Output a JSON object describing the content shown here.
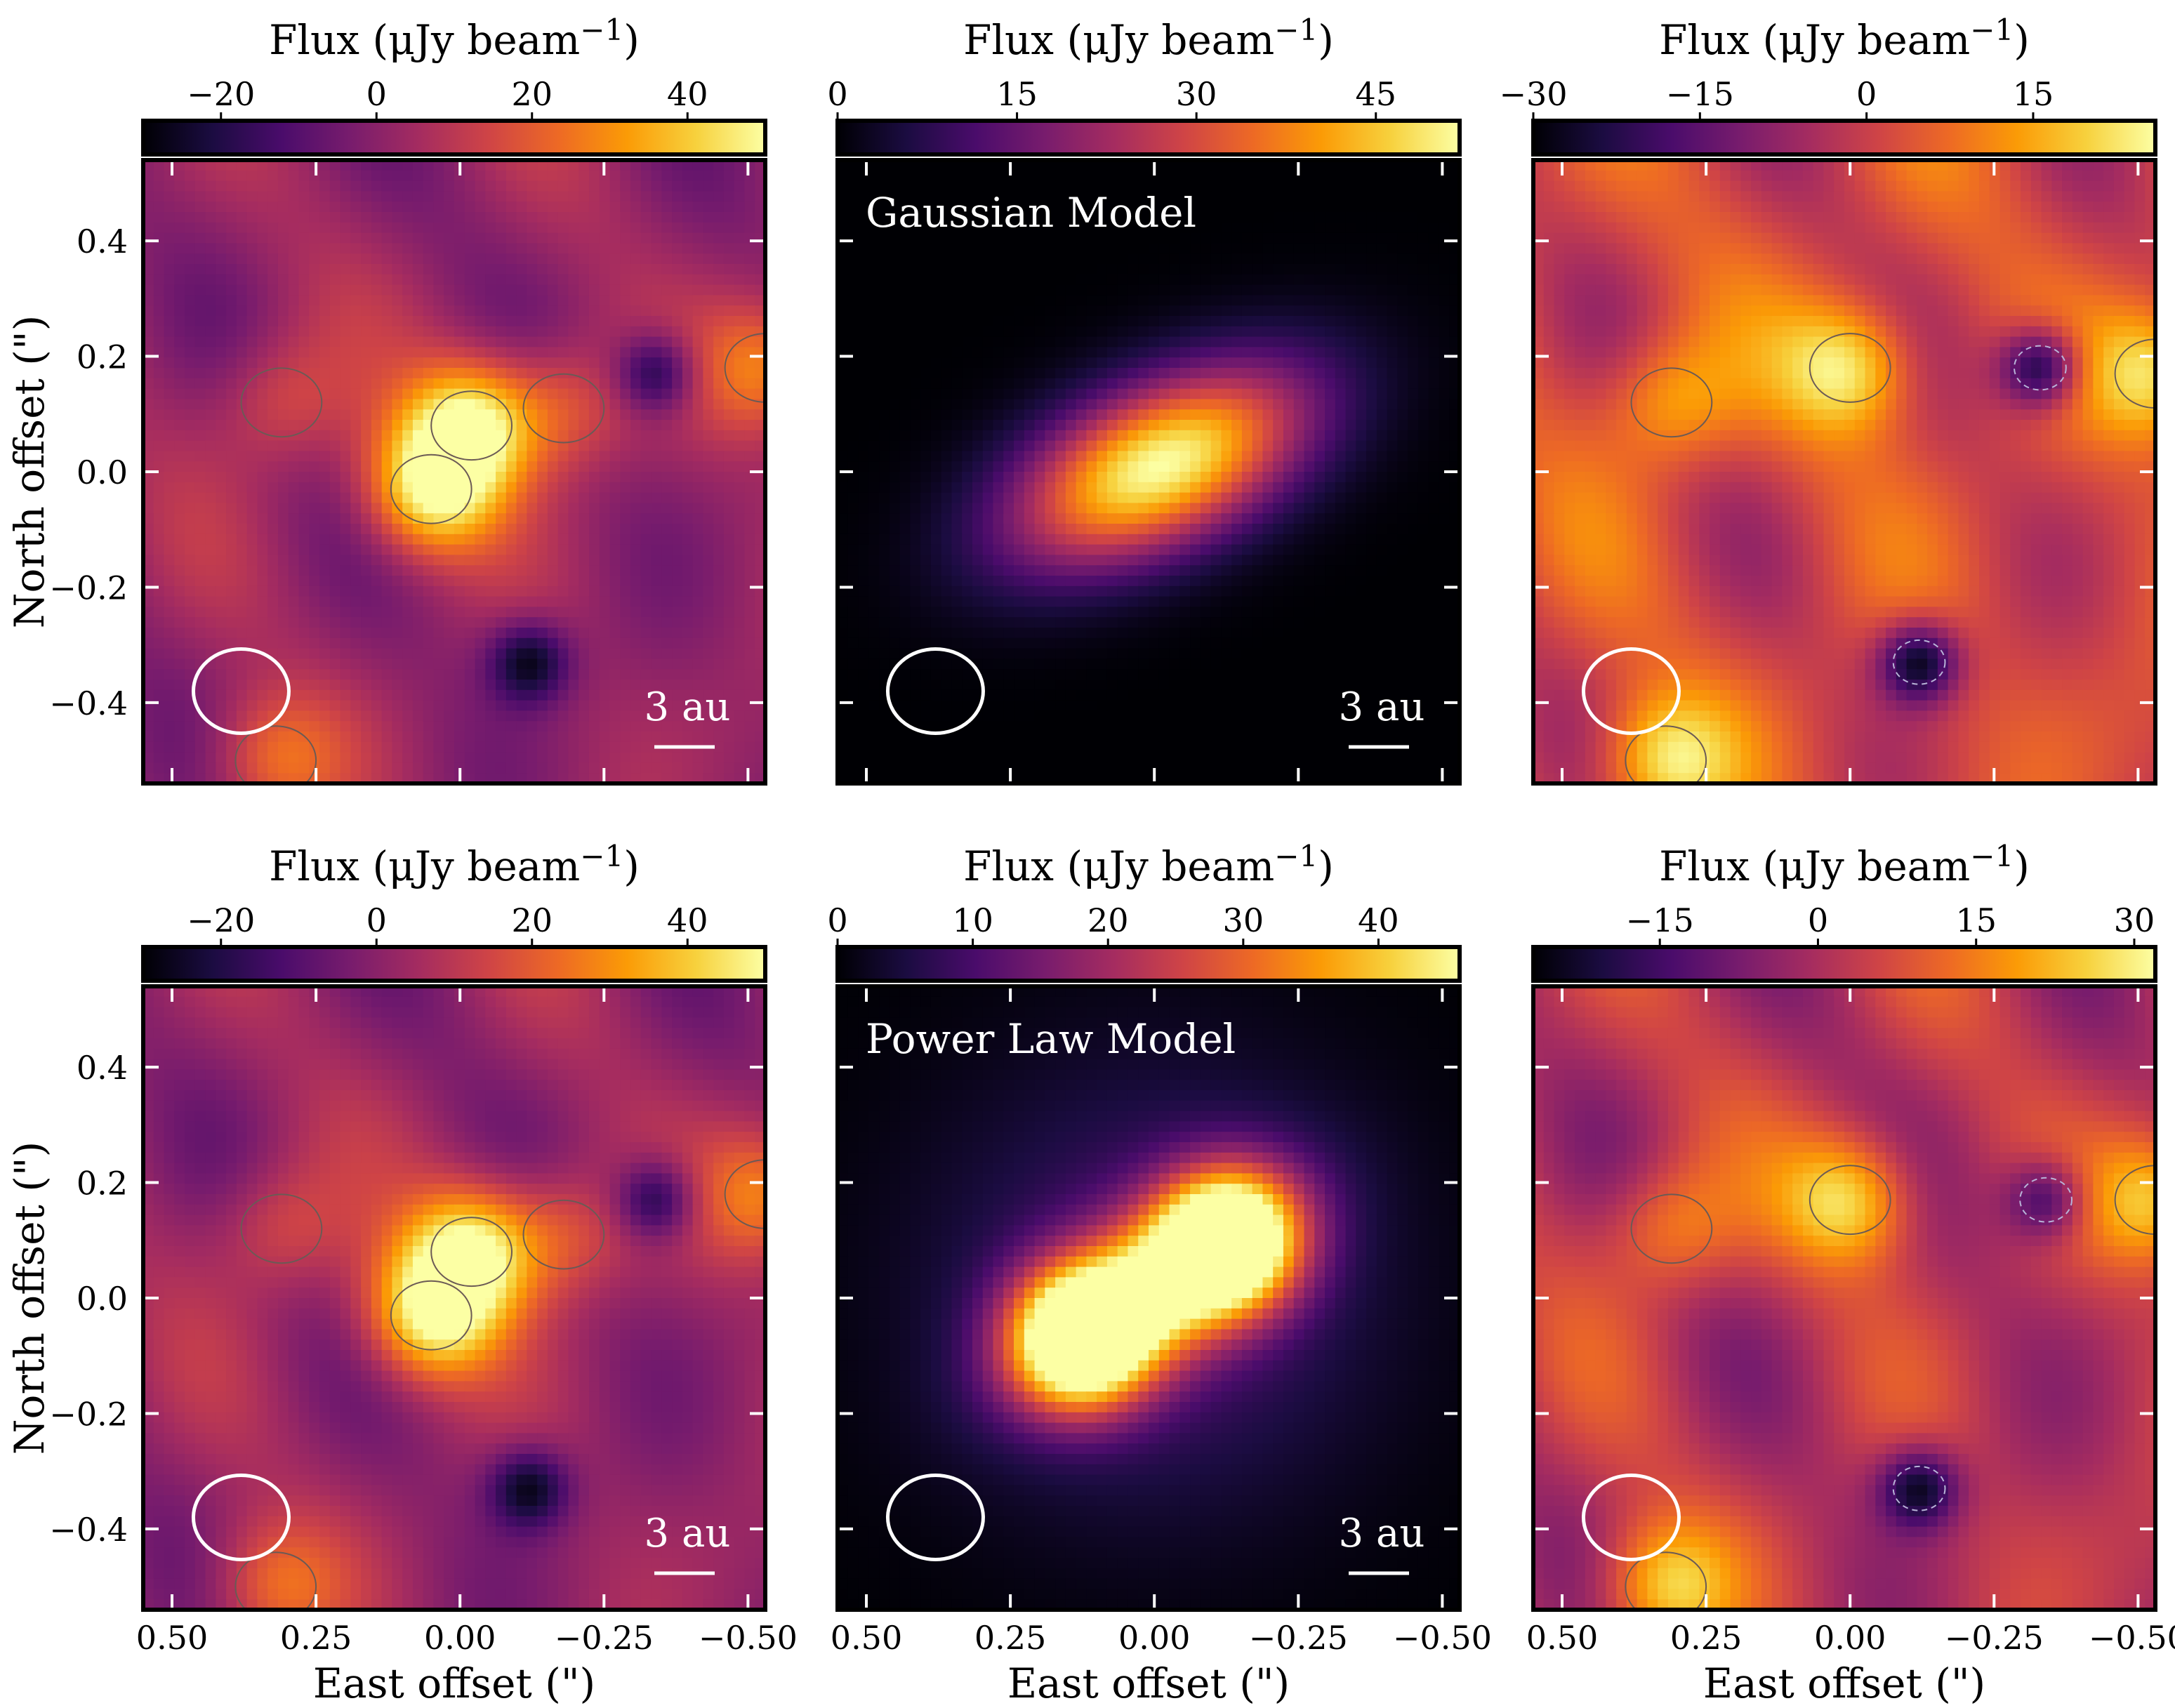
{
  "figure": {
    "colorbar_label_prefix": "Flux (μJy beam",
    "colorbar_label_exponent": "−1",
    "colorbar_label_suffix": ")",
    "xlabel": "East offset (\")",
    "ylabel": "North offset (\")",
    "scale_bar_label": "3 au",
    "colormap": [
      "#000004",
      "#1b0c41",
      "#4a0c6b",
      "#781c6d",
      "#a52c60",
      "#cf4446",
      "#ed6925",
      "#fb9b06",
      "#f7d13d",
      "#fcffa4"
    ]
  },
  "chart_data": [
    {
      "type": "heatmap",
      "panel": "top-left",
      "title": "",
      "xlabel": "",
      "ylabel": "North offset (\")",
      "xlim": [
        0.5,
        -0.5
      ],
      "ylim": [
        -0.5,
        0.5
      ],
      "xticks": [
        0.5,
        0.25,
        0.0,
        -0.25,
        -0.5
      ],
      "yticks": [
        0.4,
        0.2,
        0.0,
        -0.2,
        -0.4
      ],
      "ytick_labels": [
        "0.4",
        "0.2",
        "0.0",
        "−0.2",
        "−0.4"
      ],
      "colorbar": {
        "label": "Flux (μJy beam−1)",
        "min": -30,
        "max": 50,
        "ticks": [
          -20,
          0,
          20,
          40
        ],
        "tick_labels": [
          "−20",
          "0",
          "20",
          "40"
        ]
      },
      "features": [
        {
          "kind": "emission",
          "x": 0.05,
          "y": -0.03,
          "peak": 45
        },
        {
          "kind": "emission",
          "x": -0.02,
          "y": 0.08,
          "peak": 45
        },
        {
          "kind": "emission",
          "x": 0.31,
          "y": 0.12,
          "peak": 15
        },
        {
          "kind": "emission",
          "x": -0.18,
          "y": 0.11,
          "peak": 18
        },
        {
          "kind": "emission",
          "x": -0.53,
          "y": 0.18,
          "peak": 25
        },
        {
          "kind": "emission",
          "x": 0.32,
          "y": -0.5,
          "peak": 20
        },
        {
          "kind": "absorption",
          "x": -0.34,
          "y": 0.17,
          "peak": -28
        },
        {
          "kind": "absorption",
          "x": -0.12,
          "y": -0.33,
          "peak": -30
        }
      ],
      "contours": [
        {
          "level": 13,
          "style": "solid"
        },
        {
          "level": 26,
          "style": "solid"
        }
      ],
      "beam": {
        "major_arcsec": 0.165,
        "minor_arcsec": 0.145,
        "x": 0.38,
        "y": -0.38
      },
      "scale_bar": "3 au"
    },
    {
      "type": "heatmap",
      "panel": "top-middle",
      "title": "Gaussian Model",
      "xlabel": "",
      "ylabel": "",
      "xlim": [
        0.5,
        -0.5
      ],
      "ylim": [
        -0.5,
        0.5
      ],
      "xticks": [
        0.5,
        0.25,
        0.0,
        -0.25,
        -0.5
      ],
      "yticks": [
        0.4,
        0.2,
        0.0,
        -0.2,
        -0.4
      ],
      "colorbar": {
        "label": "Flux (μJy beam−1)",
        "min": 0,
        "max": 52,
        "ticks": [
          0,
          15,
          30,
          45
        ],
        "tick_labels": [
          "0",
          "15",
          "30",
          "45"
        ]
      },
      "model": {
        "profile": "gaussian",
        "x": -0.01,
        "y": 0.01,
        "peak": 52,
        "sigma_major_arcsec": 0.19,
        "sigma_minor_arcsec": 0.095,
        "position_angle_deg": -25
      },
      "beam": {
        "major_arcsec": 0.165,
        "minor_arcsec": 0.145,
        "x": 0.38,
        "y": -0.38
      },
      "scale_bar": "3 au"
    },
    {
      "type": "heatmap",
      "panel": "top-right",
      "title": "",
      "xlabel": "",
      "ylabel": "",
      "xlim": [
        0.5,
        -0.5
      ],
      "ylim": [
        -0.5,
        0.5
      ],
      "xticks": [
        0.5,
        0.25,
        0.0,
        -0.25,
        -0.5
      ],
      "yticks": [
        0.4,
        0.2,
        0.0,
        -0.2,
        -0.4
      ],
      "colorbar": {
        "label": "Flux (μJy beam−1)",
        "min": -30,
        "max": 26,
        "ticks": [
          -30,
          -15,
          0,
          15
        ],
        "tick_labels": [
          "−30",
          "−15",
          "0",
          "15"
        ]
      },
      "features": [
        {
          "kind": "emission",
          "x": 0.0,
          "y": 0.18,
          "peak": 22
        },
        {
          "kind": "emission",
          "x": 0.31,
          "y": 0.12,
          "peak": 15
        },
        {
          "kind": "emission",
          "x": -0.53,
          "y": 0.17,
          "peak": 20
        },
        {
          "kind": "emission",
          "x": 0.32,
          "y": -0.5,
          "peak": 20
        },
        {
          "kind": "absorption",
          "x": -0.33,
          "y": 0.18,
          "peak": -30
        },
        {
          "kind": "absorption",
          "x": -0.12,
          "y": -0.33,
          "peak": -30
        }
      ],
      "contours": [
        {
          "level": 13,
          "style": "solid"
        },
        {
          "level": -13,
          "style": "dashed"
        }
      ],
      "beam": {
        "major_arcsec": 0.165,
        "minor_arcsec": 0.145,
        "x": 0.38,
        "y": -0.38
      }
    },
    {
      "type": "heatmap",
      "panel": "bottom-left",
      "title": "",
      "xlabel": "East offset (\")",
      "ylabel": "North offset (\")",
      "xlim": [
        0.5,
        -0.5
      ],
      "ylim": [
        -0.5,
        0.5
      ],
      "xticks": [
        0.5,
        0.25,
        0.0,
        -0.25,
        -0.5
      ],
      "xtick_labels": [
        "0.50",
        "0.25",
        "0.00",
        "−0.25",
        "−0.50"
      ],
      "yticks": [
        0.4,
        0.2,
        0.0,
        -0.2,
        -0.4
      ],
      "ytick_labels": [
        "0.4",
        "0.2",
        "0.0",
        "−0.2",
        "−0.4"
      ],
      "colorbar": {
        "label": "Flux (μJy beam−1)",
        "min": -30,
        "max": 50,
        "ticks": [
          -20,
          0,
          20,
          40
        ],
        "tick_labels": [
          "−20",
          "0",
          "20",
          "40"
        ]
      },
      "features": [
        {
          "kind": "emission",
          "x": 0.05,
          "y": -0.03,
          "peak": 45
        },
        {
          "kind": "emission",
          "x": -0.02,
          "y": 0.08,
          "peak": 45
        },
        {
          "kind": "emission",
          "x": 0.31,
          "y": 0.12,
          "peak": 15
        },
        {
          "kind": "emission",
          "x": -0.18,
          "y": 0.11,
          "peak": 18
        },
        {
          "kind": "emission",
          "x": -0.53,
          "y": 0.18,
          "peak": 25
        },
        {
          "kind": "emission",
          "x": 0.32,
          "y": -0.5,
          "peak": 20
        },
        {
          "kind": "absorption",
          "x": -0.34,
          "y": 0.17,
          "peak": -28
        },
        {
          "kind": "absorption",
          "x": -0.12,
          "y": -0.33,
          "peak": -30
        }
      ],
      "contours": [
        {
          "level": 13,
          "style": "solid"
        },
        {
          "level": 26,
          "style": "solid"
        }
      ],
      "beam": {
        "major_arcsec": 0.165,
        "minor_arcsec": 0.145,
        "x": 0.38,
        "y": -0.38
      },
      "scale_bar": "3 au"
    },
    {
      "type": "heatmap",
      "panel": "bottom-middle",
      "title": "Power Law Model",
      "xlabel": "East offset (\")",
      "ylabel": "",
      "xlim": [
        0.5,
        -0.5
      ],
      "ylim": [
        -0.5,
        0.5
      ],
      "xticks": [
        0.5,
        0.25,
        0.0,
        -0.25,
        -0.5
      ],
      "xtick_labels": [
        "0.50",
        "0.25",
        "0.00",
        "−0.25",
        "−0.50"
      ],
      "yticks": [
        0.4,
        0.2,
        0.0,
        -0.2,
        -0.4
      ],
      "colorbar": {
        "label": "Flux (μJy beam−1)",
        "min": 0,
        "max": 46,
        "ticks": [
          0,
          10,
          20,
          30,
          40
        ],
        "tick_labels": [
          "0",
          "10",
          "20",
          "30",
          "40"
        ]
      },
      "model": {
        "profile": "power-law",
        "lobes": [
          {
            "x": 0.13,
            "y": -0.07,
            "peak": 46
          },
          {
            "x": -0.13,
            "y": 0.1,
            "peak": 46
          }
        ],
        "position_angle_deg": -33
      },
      "beam": {
        "major_arcsec": 0.165,
        "minor_arcsec": 0.145,
        "x": 0.38,
        "y": -0.38
      },
      "scale_bar": "3 au"
    },
    {
      "type": "heatmap",
      "panel": "bottom-right",
      "title": "",
      "xlabel": "East offset (\")",
      "ylabel": "",
      "xlim": [
        0.5,
        -0.5
      ],
      "ylim": [
        -0.5,
        0.5
      ],
      "xticks": [
        0.5,
        0.25,
        0.0,
        -0.25,
        -0.5
      ],
      "xtick_labels": [
        "0.50",
        "0.25",
        "0.00",
        "−0.25",
        "−0.50"
      ],
      "yticks": [
        0.4,
        0.2,
        0.0,
        -0.2,
        -0.4
      ],
      "colorbar": {
        "label": "Flux (μJy beam−1)",
        "min": -27,
        "max": 32,
        "ticks": [
          -15,
          0,
          15,
          30
        ],
        "tick_labels": [
          "−15",
          "0",
          "15",
          "30"
        ]
      },
      "features": [
        {
          "kind": "emission",
          "x": 0.0,
          "y": 0.17,
          "peak": 25
        },
        {
          "kind": "emission",
          "x": 0.31,
          "y": 0.12,
          "peak": 15
        },
        {
          "kind": "emission",
          "x": -0.53,
          "y": 0.17,
          "peak": 22
        },
        {
          "kind": "emission",
          "x": 0.32,
          "y": -0.5,
          "peak": 22
        },
        {
          "kind": "absorption",
          "x": -0.34,
          "y": 0.17,
          "peak": -22
        },
        {
          "kind": "absorption",
          "x": -0.12,
          "y": -0.33,
          "peak": -27
        }
      ],
      "contours": [
        {
          "level": 13,
          "style": "solid"
        },
        {
          "level": -13,
          "style": "dashed"
        }
      ],
      "beam": {
        "major_arcsec": 0.165,
        "minor_arcsec": 0.145,
        "x": 0.38,
        "y": -0.38
      }
    }
  ]
}
